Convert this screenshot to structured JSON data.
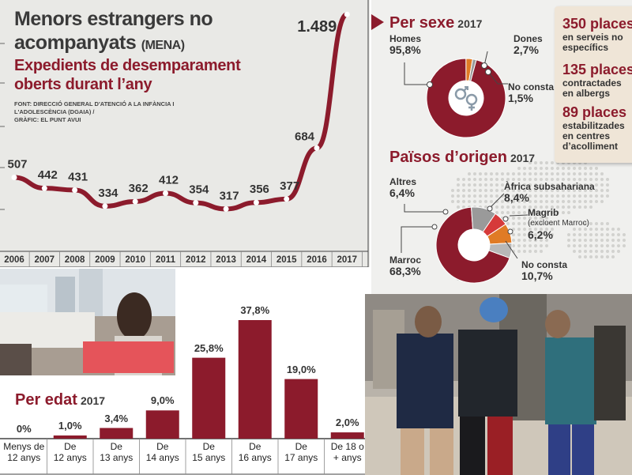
{
  "title": "Menors estrangers no",
  "title_line2": "acompanyats",
  "title_suffix": "(MENA)",
  "subtitle_line1": "Expedients de desemparament",
  "subtitle_line2": "oberts durant l’any",
  "source_line1": "FONT: DIRECCIÓ GENERAL D'ATENCIÓ A LA INFÀNCIA I",
  "source_line2": "L'ADOLESCÈNCIA (DGAIA) /",
  "source_line3": "GRÀFIC: EL PUNT AVUI",
  "sex_section": {
    "title": "Per sexe",
    "year": "2017"
  },
  "origin_section": {
    "title": "Països d’origen",
    "year": "2017"
  },
  "age_section": {
    "title": "Per edat",
    "year": "2017"
  },
  "places": [
    {
      "number": "350 places",
      "line1": "en serveis no",
      "line2": "específics",
      "line3": ""
    },
    {
      "number": "135 places",
      "line1": "contractades",
      "line2": "en albergs",
      "line3": ""
    },
    {
      "number": "89 places",
      "line1": "estabilitzades",
      "line2": "en centres",
      "line3": "d’acolliment"
    }
  ],
  "colors": {
    "maroon": "#8c1b2c",
    "orange": "#e07b25",
    "red": "#d63a3a",
    "gray": "#9a9a9a",
    "panel": "#e9e9e6"
  },
  "icons": {
    "gender": "gender-symbols-icon",
    "arrow": "triangle-arrow-icon"
  },
  "chart_data": [
    {
      "type": "line",
      "x": [
        "2006",
        "2007",
        "2008",
        "2009",
        "2010",
        "2011",
        "2012",
        "2013",
        "2014",
        "2015",
        "2016",
        "2017"
      ],
      "values": [
        507,
        442,
        431,
        334,
        362,
        412,
        354,
        317,
        356,
        377,
        684,
        1489
      ],
      "value_labels": [
        "507",
        "442",
        "431",
        "334",
        "362",
        "412",
        "354",
        "317",
        "356",
        "377",
        "684",
        "1.489"
      ]
    },
    {
      "type": "pie",
      "labels": [
        "Homes",
        "Dones",
        "No consta"
      ],
      "values": [
        95.8,
        2.7,
        1.5
      ],
      "value_labels": [
        "95,8%",
        "2,7%",
        "1,5%"
      ]
    },
    {
      "type": "pie",
      "labels": [
        "Marroc",
        "Altres",
        "Àfrica subsahariana",
        "Magrib",
        "No consta"
      ],
      "label_notes": [
        "",
        "",
        "",
        "(excloent Marroc)",
        ""
      ],
      "values": [
        68.3,
        6.4,
        8.4,
        6.2,
        10.7
      ],
      "value_labels": [
        "68,3%",
        "6,4%",
        "8,4%",
        "6,2%",
        "10,7%"
      ]
    },
    {
      "type": "bar",
      "categories": [
        "Menys de 12 anys",
        "De 12 anys",
        "De 13 anys",
        "De 14 anys",
        "De 15 anys",
        "De 16 anys",
        "De 17 anys",
        "De 18 o + anys"
      ],
      "category_lines": [
        [
          "Menys de",
          "12 anys"
        ],
        [
          "De",
          "12 anys"
        ],
        [
          "De",
          "13 anys"
        ],
        [
          "De",
          "14 anys"
        ],
        [
          "De",
          "15 anys"
        ],
        [
          "De",
          "16 anys"
        ],
        [
          "De",
          "17 anys"
        ],
        [
          "De 18 o",
          "+ anys"
        ]
      ],
      "values": [
        0,
        1.0,
        3.4,
        9.0,
        25.8,
        37.8,
        19.0,
        2.0
      ],
      "value_labels": [
        "0%",
        "1,0%",
        "3,4%",
        "9,0%",
        "25,8%",
        "37,8%",
        "19,0%",
        "2,0%"
      ]
    }
  ]
}
